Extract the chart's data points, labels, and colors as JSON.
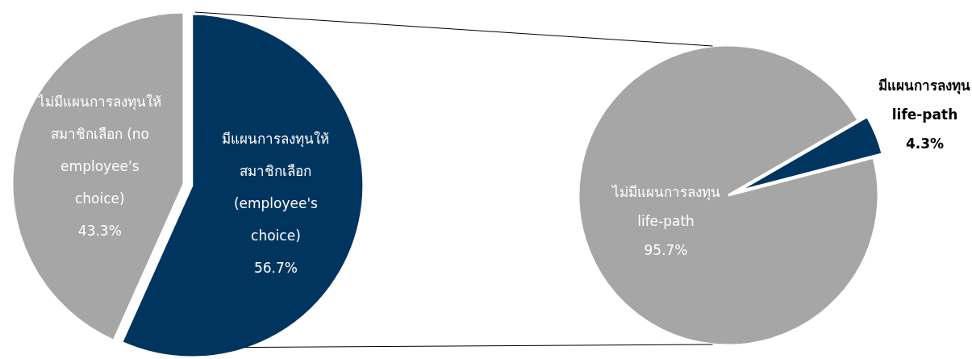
{
  "chart_data": [
    {
      "type": "pie",
      "categories": [
        "มีแผนการลงทุนให้\nสมาชิกเลือก\n(employee's\nchoice)",
        "ไม่มีแผนการลงทุนให้\nสมาชิกเลือก (no\nemployee's\nchoice)"
      ],
      "values": [
        56.7,
        43.3
      ],
      "colors": [
        "#003560",
        "#a6a6a6"
      ],
      "value_labels": [
        "56.7%",
        "43.3%"
      ]
    },
    {
      "type": "pie",
      "categories": [
        "มีแผนการลงทุน\nlife-path",
        "ไม่มีแผนการลงทุน\nlife-path"
      ],
      "values": [
        4.3,
        95.7
      ],
      "colors": [
        "#003560",
        "#a6a6a6"
      ],
      "value_labels": [
        "4.3%",
        "95.7%"
      ]
    }
  ]
}
